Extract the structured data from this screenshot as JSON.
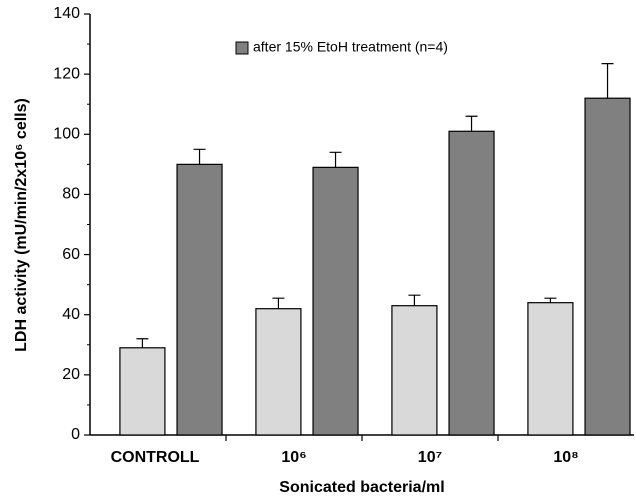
{
  "chart_data": {
    "type": "bar",
    "y_label": "LDH activity (mU/min/2x10⁶ cells)",
    "x_label": "Sonicated bacteria/ml",
    "categories": [
      "CONTROLL",
      "10⁶",
      "10⁷",
      "10⁸"
    ],
    "series": [
      {
        "color": "#d9d9d9",
        "values": [
          29,
          42,
          43,
          44
        ],
        "errors": [
          3,
          3.5,
          3.5,
          1.5
        ]
      },
      {
        "name": "after 15% EtoH treatment (n=4)",
        "color": "#808080",
        "values": [
          90,
          89,
          101,
          112
        ],
        "errors": [
          5,
          5,
          5,
          11.5
        ]
      }
    ],
    "ylim": [
      0,
      140
    ],
    "yticks": [
      0,
      20,
      40,
      60,
      80,
      100,
      120,
      140
    ],
    "legend": "top",
    "grid": false
  }
}
